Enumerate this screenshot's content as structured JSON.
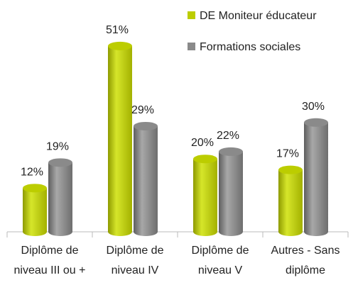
{
  "chart_data": {
    "type": "bar",
    "categories": [
      "Diplôme de niveau III ou +",
      "Diplôme de niveau IV",
      "Diplôme de niveau V",
      "Autres - Sans diplôme"
    ],
    "series": [
      {
        "name": "DE Moniteur éducateur",
        "color": "#bccd00",
        "values": [
          12,
          51,
          20,
          17
        ],
        "value_labels": [
          "12%",
          "51%",
          "20%",
          "17%"
        ]
      },
      {
        "name": "Formations sociales",
        "color": "#8a8a8a",
        "values": [
          19,
          29,
          22,
          30
        ],
        "value_labels": [
          "19%",
          "29%",
          "22%",
          "30%"
        ]
      }
    ],
    "legend": "top-right"
  }
}
